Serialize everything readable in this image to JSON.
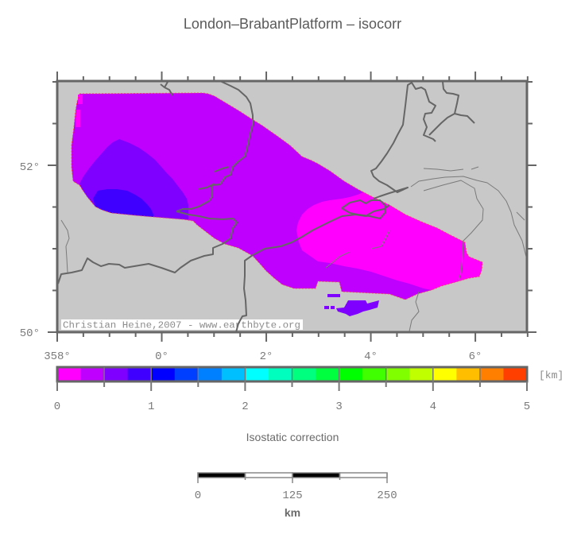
{
  "title": "London–BrabantPlatform – isocorr",
  "map": {
    "background": "#c8c8c8",
    "frame_color": "#666666",
    "lon_labels": [
      "358°",
      "0°",
      "2°",
      "4°",
      "6°"
    ],
    "lat_labels": [
      "52°",
      "50°"
    ],
    "watermark": "Christian Heine,2007 - www.earthbyte.org",
    "data_outline_color": "#ff4040",
    "coast_color": "#666666",
    "river_color": "#7a7a7a",
    "regions": [
      {
        "name": "isocorr-band-0.25-0.5km",
        "color": "#bf00ff",
        "polygons": [
          "100,118 255,117 262,118 270,121 280,127 290,133 300,139 317,150 330,158 350,172 365,183 380,197 392,202 400,206 415,215 433,228 450,238 467,247 490,258 510,270 530,279 550,287 565,295 585,305 587,318 590,323 607,330 606,340 603,348 590,350 573,355 555,360 543,365 525,370 510,377 490,370 470,369 450,368 430,367 427,355 400,354 397,363 370,363 355,358 345,350 335,341 328,333 318,322 300,312 283,307 270,300 257,290 248,283 243,278 230,276 193,273 170,271 140,268 128,264 120,260 110,248 100,233 92,228 90,210 90,183 93,160 95,140 97,128"
        ]
      },
      {
        "name": "isocorr-band-0.5-0.75km",
        "color": "#7f00ff",
        "polygons": [
          "150,175 163,180 175,186 185,193 195,201 203,210 210,218 217,225 223,233 230,242 235,250 237,258 237,268 237,276 230,276 193,273 170,271 140,268 128,264 120,260 110,248 103,238 100,231 105,222 112,212 120,202 128,193 135,185 142,179",
          "423,388 433,387 438,378 460,378 462,382 477,378 475,387 465,390 457,392 450,395 440,398 435,395 425,392",
          "408,385 414,385 414,389 408,389",
          "416,385 421,385 421,389 416,389",
          "412,370 428,370 428,374 412,374"
        ]
      },
      {
        "name": "isocorr-band-0.75-1km",
        "color": "#3f00ff",
        "polygons": [
          "123,240 135,238 147,238 160,240 170,245 178,250 185,257 190,263 193,270 193,273 170,271 140,268 128,264 120,260 117,250"
        ]
      },
      {
        "name": "isocorr-band-0-0.25km",
        "color": "#ff00ff",
        "polygons": [
          "373,290 375,280 380,270 387,263 395,258 405,254 415,252 430,250 440,248 450,245 457,242 467,247 490,258 510,270 530,279 550,287 565,295 585,305 587,318 590,323 607,330 606,340 603,348 590,350 573,355 555,360 543,365 533,363 515,357 500,353 485,348 467,342 450,338 433,335 415,331 400,329 390,322 380,315 376,305",
          "95,138 101,138 101,160 95,160",
          "98,119 104,119 104,131 98,131"
        ]
      }
    ],
    "coastlines": [
      "202,106 207,110 213,113 217,120",
      "207,110 211,103",
      "277,102 290,108 300,113 310,122 315,130 318,145 318,157 315,168 313,177 310,190 308,197 300,203 293,210 290,220 283,223 277,232 267,233 267,247 263,253 250,260 240,263 230,263 222,266",
      "270,216 280,212 288,210",
      "250,238 260,236 270,231",
      "222,266 237,270 250,272 263,275 280,276 293,275 298,280 293,287 290,300 280,307 268,312 268,320 257,322 240,328 227,337 220,343 203,337 187,332 157,337 150,333 137,332 127,335 117,330 110,325 103,340 90,343 77,345 73,357",
      "318,321 308,328 308,347 307,363 309,378 310,397 305,398 300,407 297,418",
      "318,321 333,313 353,310 367,305 380,298 393,290 413,280 430,272 447,270 460,272 470,266 483,263 490,258",
      "430,262 440,255 453,252 460,256 467,252 478,252 484,258 485,267 478,275 465,272 450,270 440,268 430,262",
      "470,250 478,247 490,243 500,240 513,236 500,242 487,233 477,228 470,222 467,215 473,212 480,203 487,193 495,180 500,170 507,157 510,133 513,107 518,104 523,112 530,110 535,113 540,128 548,133 543,142 535,143 533,150 537,160 533,170 545,175 548,178",
      "557,103 558,112 562,117 570,118 577,120 575,130 572,143 580,145 588,146 597,155",
      "572,143 563,148 555,155 545,165 540,170"
    ],
    "rivers": [
      "517,235 527,228 545,225 560,223 583,222 600,227 613,230 627,240 637,253 643,267 647,283 657,303 662,323",
      "533,240 557,233 580,227 597,237 600,250 608,263 607,277 593,293 583,303 582,323 580,343 577,353",
      "527,367 523,380 527,392 518,403 515,417",
      "533,212 550,213 567,215 583,213",
      "593,213 602,210",
      "650,267 660,277",
      "490,290 485,300 480,310 467,313",
      "440,317 427,323 410,337",
      "77,277 85,290 87,300 83,310 84,325 85,343"
    ]
  },
  "colorbar": {
    "title": "Isostatic correction",
    "unit": "[km]",
    "min": 0,
    "max": 5,
    "labels": [
      "0",
      "1",
      "2",
      "3",
      "4",
      "5"
    ],
    "colors": [
      "#ff00ff",
      "#bf00ff",
      "#7f00ff",
      "#3f00ff",
      "#0000ff",
      "#003fff",
      "#007fff",
      "#00bfff",
      "#00ffff",
      "#00ffbf",
      "#00ff7f",
      "#00ff3f",
      "#00ff00",
      "#3fff00",
      "#7fff00",
      "#bfff00",
      "#ffff00",
      "#ffbf00",
      "#ff7f00",
      "#ff3f00"
    ]
  },
  "scalebar": {
    "labels": [
      "0",
      "125",
      "250"
    ],
    "unit": "km"
  }
}
